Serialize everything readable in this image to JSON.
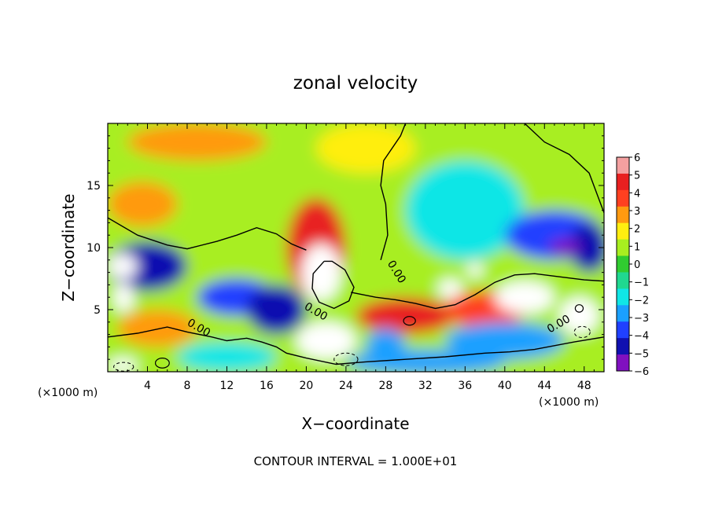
{
  "chart_data": {
    "type": "heatmap",
    "title": "zonal velocity",
    "xlabel": "X−coordinate",
    "ylabel": "Z−coordinate",
    "x_unit_left": "(×1000 m)",
    "x_unit_right": "(×1000 m)",
    "xlim": [
      0,
      50
    ],
    "ylim": [
      0,
      20
    ],
    "x_ticks": [
      4,
      8,
      12,
      16,
      20,
      24,
      28,
      32,
      36,
      40,
      44,
      48
    ],
    "x_tick_labels": [
      "4",
      "8",
      "12",
      "16",
      "20",
      "24",
      "28",
      "32",
      "36",
      "40",
      "44",
      "48"
    ],
    "y_ticks": [
      5,
      10,
      15
    ],
    "y_tick_labels": [
      "5",
      "10",
      "15"
    ],
    "colorbar": {
      "min": -6,
      "max": 6,
      "levels": [
        6,
        5,
        4,
        3,
        2,
        1,
        0,
        -1,
        -2,
        -3,
        -4,
        -5,
        -6
      ],
      "labels": [
        "6",
        "5",
        "4",
        "3",
        "2",
        "1",
        "0",
        "−1",
        "−2",
        "−3",
        "−4",
        "−5",
        "−6"
      ],
      "colors": [
        "#f4a0a0",
        "#e82020",
        "#ff4020",
        "#ff9a10",
        "#ffee10",
        "#a8ee20",
        "#30cc30",
        "#20d890",
        "#10e6e6",
        "#1aa0ff",
        "#2040ff",
        "#1010b0",
        "#8010c0"
      ]
    },
    "contour_labels": [
      "0.00",
      "0.00",
      "0.00",
      "0.00"
    ],
    "field_blobs": [
      {
        "x": 3.5,
        "y": 13.5,
        "rx": 3.5,
        "ry": 1.8,
        "v": 3.2
      },
      {
        "x": 9,
        "y": 18.5,
        "rx": 7,
        "ry": 1.5,
        "v": 2.8
      },
      {
        "x": 21,
        "y": 10,
        "rx": 3,
        "ry": 4,
        "v": 4.8
      },
      {
        "x": 21.5,
        "y": 8,
        "rx": 2,
        "ry": 2.3,
        "v": 6
      },
      {
        "x": 26,
        "y": 18,
        "rx": 5,
        "ry": 2,
        "v": 1.6
      },
      {
        "x": 36,
        "y": 13,
        "rx": 6,
        "ry": 4,
        "v": -2.3
      },
      {
        "x": 45,
        "y": 11,
        "rx": 5,
        "ry": 2,
        "v": -3.5
      },
      {
        "x": 48.5,
        "y": 10,
        "rx": 2,
        "ry": 2,
        "v": -5
      },
      {
        "x": 4,
        "y": 8.5,
        "rx": 4,
        "ry": 2,
        "v": -4.6
      },
      {
        "x": 1.5,
        "y": 8.5,
        "rx": 1.5,
        "ry": 1,
        "v": 6
      },
      {
        "x": 1.6,
        "y": 6,
        "rx": 1,
        "ry": 1.2,
        "v": 6
      },
      {
        "x": 13,
        "y": 6,
        "rx": 4,
        "ry": 1.5,
        "v": -4
      },
      {
        "x": 17,
        "y": 5,
        "rx": 3,
        "ry": 2,
        "v": -4.5
      },
      {
        "x": 22,
        "y": 2.5,
        "rx": 3,
        "ry": 1.5,
        "v": 6
      },
      {
        "x": 30,
        "y": 4.5,
        "rx": 5,
        "ry": 1.5,
        "v": 5.5
      },
      {
        "x": 38,
        "y": 5,
        "rx": 4,
        "ry": 1.5,
        "v": 4.5
      },
      {
        "x": 42,
        "y": 6,
        "rx": 3,
        "ry": 1.3,
        "v": 5.8
      },
      {
        "x": 47.5,
        "y": 4.5,
        "rx": 2,
        "ry": 1.5,
        "v": 6
      },
      {
        "x": 34.5,
        "y": 6.7,
        "rx": 1.2,
        "ry": 0.8,
        "v": 6
      },
      {
        "x": 37,
        "y": 8.2,
        "rx": 0.8,
        "ry": 0.6,
        "v": 6
      },
      {
        "x": 46,
        "y": 10,
        "rx": 1.5,
        "ry": 0.7,
        "v": -5.5
      },
      {
        "x": 5,
        "y": 3.5,
        "rx": 4,
        "ry": 1.5,
        "v": 3.5
      },
      {
        "x": 40,
        "y": 2.5,
        "rx": 6,
        "ry": 1.5,
        "v": -3
      },
      {
        "x": 12,
        "y": 1.2,
        "rx": 5,
        "ry": 1.2,
        "v": -2
      },
      {
        "x": 32,
        "y": 0.8,
        "rx": 8,
        "ry": 1,
        "v": -3.2
      },
      {
        "x": 1.5,
        "y": 0.5,
        "rx": 1.5,
        "ry": 0.6,
        "v": 6
      },
      {
        "x": 28,
        "y": 2,
        "rx": 2,
        "ry": 1.5,
        "v": -3
      }
    ]
  }
}
